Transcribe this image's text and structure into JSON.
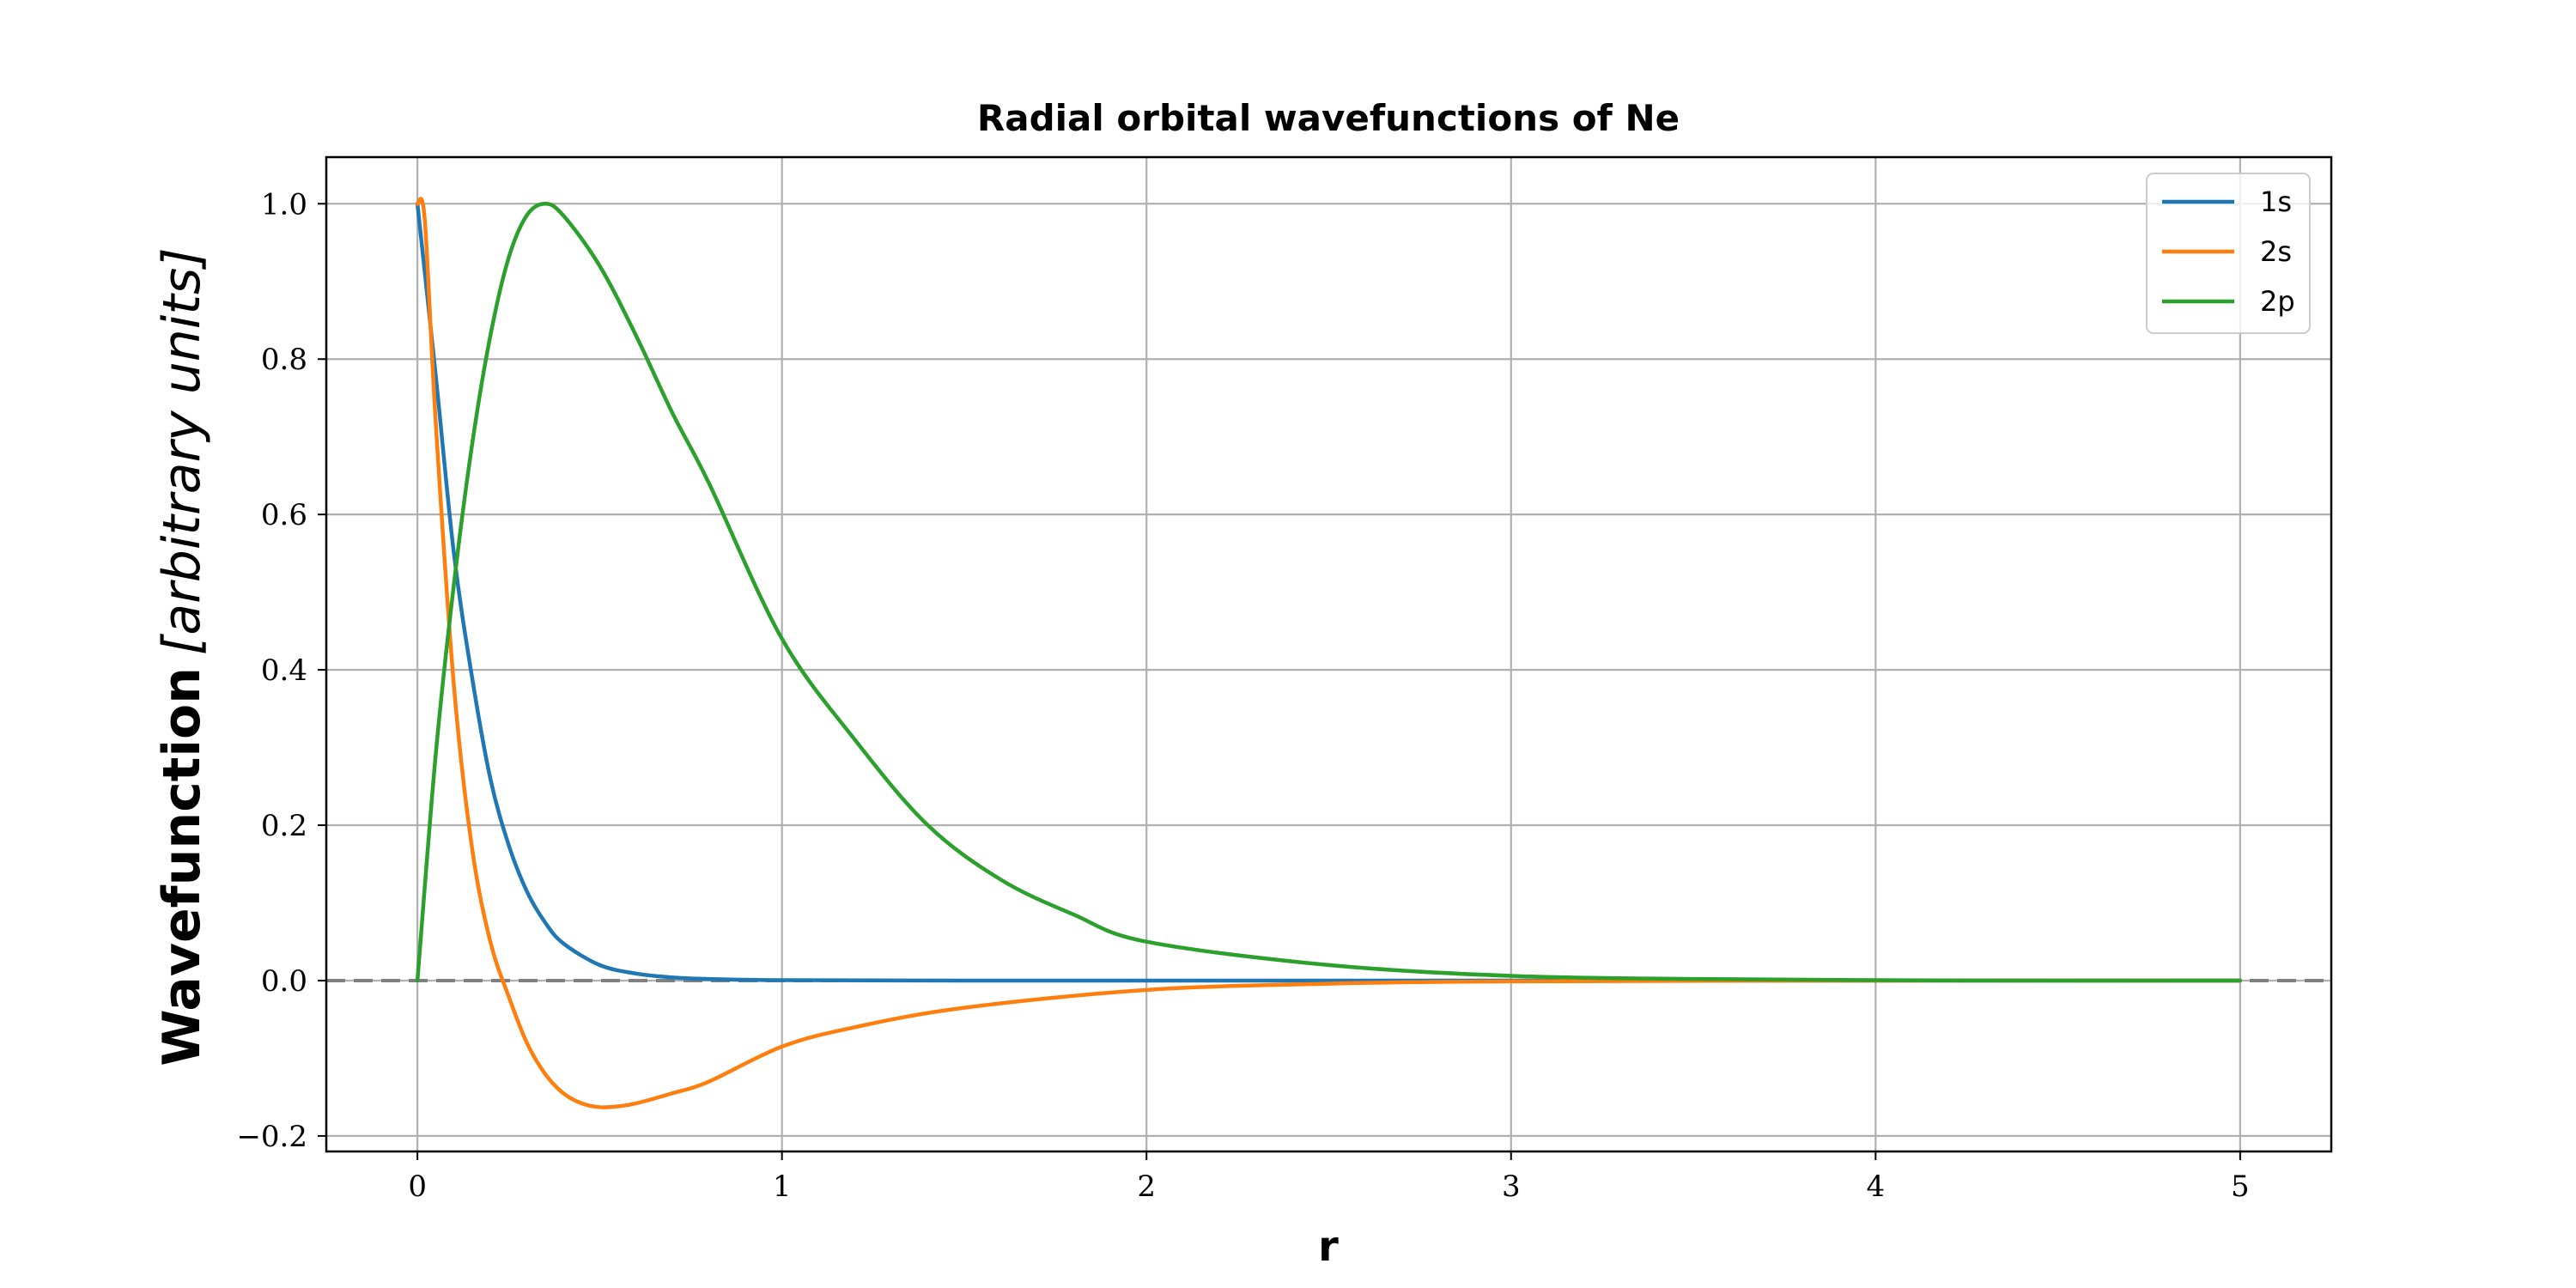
{
  "chart_data": {
    "type": "line",
    "title": "Radial orbital wavefunctions of Ne",
    "xlabel": "r",
    "ylabel": "Wavefunction",
    "ylabel_unit": "[arbitrary units]",
    "xlim": [
      -0.25,
      5.25
    ],
    "ylim": [
      -0.22,
      1.06
    ],
    "xticks": [
      0,
      1,
      2,
      3,
      4,
      5
    ],
    "yticks": [
      -0.2,
      0.0,
      0.2,
      0.4,
      0.6,
      0.8,
      1.0
    ],
    "xtick_labels": [
      "0",
      "1",
      "2",
      "3",
      "4",
      "5"
    ],
    "ytick_labels": [
      "−0.2",
      "0.0",
      "0.2",
      "0.4",
      "0.6",
      "0.8",
      "1.0"
    ],
    "grid": true,
    "legend_position": "top-right",
    "zero_line": {
      "y": 0.0,
      "style": "dashed",
      "color": "#808080"
    },
    "series": [
      {
        "name": "1s",
        "color": "#1f77b4",
        "x": [
          0,
          0.05,
          0.1,
          0.15,
          0.2,
          0.25,
          0.3,
          0.35,
          0.4,
          0.5,
          0.6,
          0.7,
          0.8,
          1.0,
          1.5,
          2.0,
          3.0,
          4.0,
          5.0
        ],
        "y": [
          1.0,
          0.78,
          0.55,
          0.39,
          0.26,
          0.175,
          0.115,
          0.075,
          0.048,
          0.02,
          0.009,
          0.004,
          0.002,
          0.0005,
          0.0,
          0.0,
          0.0,
          0.0,
          0.0
        ]
      },
      {
        "name": "2s",
        "color": "#ff7f0e",
        "x": [
          0,
          0.02,
          0.05,
          0.1,
          0.15,
          0.2,
          0.25,
          0.3,
          0.35,
          0.4,
          0.45,
          0.5,
          0.55,
          0.6,
          0.7,
          0.8,
          1.0,
          1.2,
          1.5,
          2.0,
          2.5,
          3.0,
          4.0,
          5.0
        ],
        "y": [
          1.0,
          0.98,
          0.72,
          0.38,
          0.17,
          0.05,
          -0.02,
          -0.08,
          -0.12,
          -0.145,
          -0.158,
          -0.163,
          -0.162,
          -0.158,
          -0.145,
          -0.13,
          -0.085,
          -0.06,
          -0.035,
          -0.012,
          -0.004,
          -0.001,
          0.0,
          0.0
        ]
      },
      {
        "name": "2p",
        "color": "#2ca02c",
        "x": [
          0,
          0.05,
          0.1,
          0.15,
          0.2,
          0.25,
          0.3,
          0.35,
          0.4,
          0.5,
          0.6,
          0.7,
          0.8,
          1.0,
          1.2,
          1.4,
          1.6,
          1.8,
          2.0,
          2.5,
          3.0,
          3.5,
          4.0,
          4.5,
          5.0
        ],
        "y": [
          0.0,
          0.29,
          0.51,
          0.69,
          0.83,
          0.93,
          0.985,
          1.0,
          0.985,
          0.92,
          0.83,
          0.73,
          0.64,
          0.44,
          0.31,
          0.2,
          0.13,
          0.085,
          0.05,
          0.02,
          0.006,
          0.002,
          0.0005,
          0.0,
          0.0
        ]
      }
    ]
  }
}
